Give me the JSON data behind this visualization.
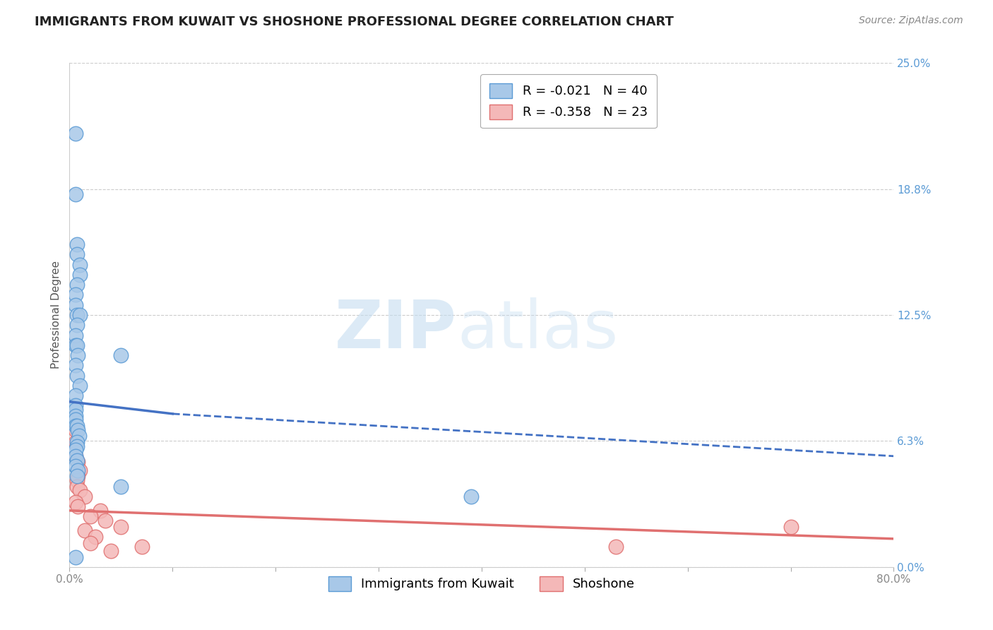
{
  "title": "IMMIGRANTS FROM KUWAIT VS SHOSHONE PROFESSIONAL DEGREE CORRELATION CHART",
  "source": "Source: ZipAtlas.com",
  "xlabel": "",
  "ylabel": "Professional Degree",
  "legend_entries": [
    {
      "label": "R = -0.021   N = 40",
      "color": "#a8c8e8"
    },
    {
      "label": "R = -0.358   N = 23",
      "color": "#f4b8b8"
    }
  ],
  "legend_labels_bottom": [
    "Immigrants from Kuwait",
    "Shoshone"
  ],
  "xlim": [
    0.0,
    0.8
  ],
  "ylim": [
    0.0,
    0.25
  ],
  "yticks": [
    0.0,
    0.0625,
    0.125,
    0.1875,
    0.25
  ],
  "ytick_labels": [
    "0.0%",
    "6.3%",
    "12.5%",
    "18.8%",
    "25.0%"
  ],
  "xticks": [
    0.0,
    0.1,
    0.2,
    0.3,
    0.4,
    0.5,
    0.6,
    0.7,
    0.8
  ],
  "xtick_labels": [
    "0.0%",
    "",
    "",
    "",
    "",
    "",
    "",
    "",
    "80.0%"
  ],
  "grid_color": "#cccccc",
  "background_color": "#ffffff",
  "kuwait_color": "#a8c8e8",
  "kuwait_edge_color": "#5b9bd5",
  "shoshone_color": "#f4b8b8",
  "shoshone_edge_color": "#e07070",
  "kuwait_trend_color": "#4472c4",
  "shoshone_trend_color": "#e07070",
  "watermark_zip": "ZIP",
  "watermark_atlas": "atlas",
  "kuwait_points": [
    [
      0.006,
      0.215
    ],
    [
      0.006,
      0.185
    ],
    [
      0.007,
      0.16
    ],
    [
      0.007,
      0.155
    ],
    [
      0.01,
      0.15
    ],
    [
      0.01,
      0.145
    ],
    [
      0.007,
      0.14
    ],
    [
      0.006,
      0.135
    ],
    [
      0.006,
      0.13
    ],
    [
      0.007,
      0.125
    ],
    [
      0.01,
      0.125
    ],
    [
      0.007,
      0.12
    ],
    [
      0.006,
      0.115
    ],
    [
      0.006,
      0.11
    ],
    [
      0.007,
      0.11
    ],
    [
      0.008,
      0.105
    ],
    [
      0.05,
      0.105
    ],
    [
      0.006,
      0.1
    ],
    [
      0.007,
      0.095
    ],
    [
      0.01,
      0.09
    ],
    [
      0.006,
      0.085
    ],
    [
      0.006,
      0.08
    ],
    [
      0.006,
      0.078
    ],
    [
      0.006,
      0.075
    ],
    [
      0.006,
      0.073
    ],
    [
      0.006,
      0.07
    ],
    [
      0.007,
      0.07
    ],
    [
      0.008,
      0.068
    ],
    [
      0.009,
      0.065
    ],
    [
      0.007,
      0.062
    ],
    [
      0.007,
      0.06
    ],
    [
      0.006,
      0.058
    ],
    [
      0.006,
      0.055
    ],
    [
      0.007,
      0.053
    ],
    [
      0.006,
      0.05
    ],
    [
      0.008,
      0.048
    ],
    [
      0.007,
      0.045
    ],
    [
      0.05,
      0.04
    ],
    [
      0.39,
      0.035
    ],
    [
      0.006,
      0.005
    ]
  ],
  "shoshone_points": [
    [
      0.006,
      0.068
    ],
    [
      0.006,
      0.062
    ],
    [
      0.006,
      0.055
    ],
    [
      0.008,
      0.052
    ],
    [
      0.01,
      0.048
    ],
    [
      0.008,
      0.045
    ],
    [
      0.007,
      0.043
    ],
    [
      0.007,
      0.04
    ],
    [
      0.01,
      0.038
    ],
    [
      0.015,
      0.035
    ],
    [
      0.006,
      0.032
    ],
    [
      0.008,
      0.03
    ],
    [
      0.03,
      0.028
    ],
    [
      0.02,
      0.025
    ],
    [
      0.035,
      0.023
    ],
    [
      0.05,
      0.02
    ],
    [
      0.015,
      0.018
    ],
    [
      0.025,
      0.015
    ],
    [
      0.02,
      0.012
    ],
    [
      0.07,
      0.01
    ],
    [
      0.04,
      0.008
    ],
    [
      0.53,
      0.01
    ],
    [
      0.7,
      0.02
    ]
  ],
  "kuwait_trend_solid": {
    "x_start": 0.0,
    "x_end": 0.1,
    "y_start": 0.082,
    "y_end": 0.076
  },
  "kuwait_trend_dashed": {
    "x_start": 0.1,
    "x_end": 0.8,
    "y_start": 0.076,
    "y_end": 0.055
  },
  "shoshone_trend": {
    "x_start": 0.0,
    "x_end": 0.8,
    "y_start": 0.028,
    "y_end": 0.014
  },
  "title_fontsize": 13,
  "axis_label_fontsize": 11,
  "tick_fontsize": 11,
  "tick_color": "#5b9bd5",
  "source_fontsize": 10
}
